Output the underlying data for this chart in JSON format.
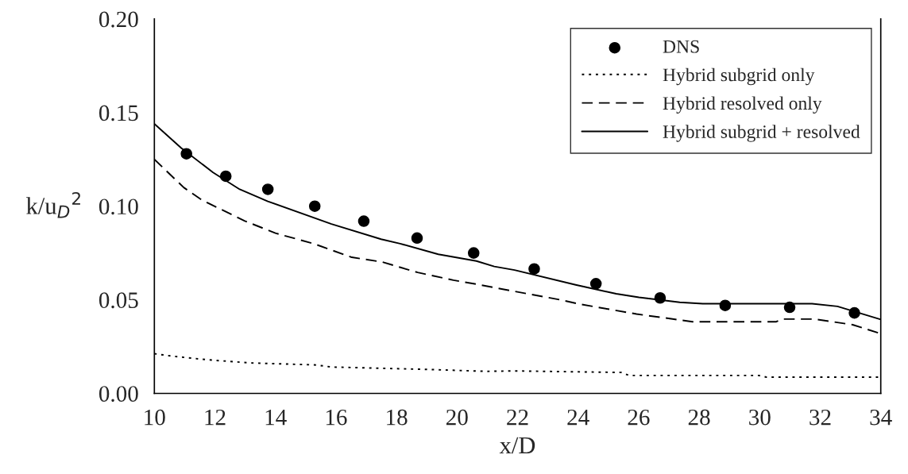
{
  "chart_data": {
    "type": "line",
    "xlabel": "x/D",
    "ylabel": "k/u$_{D}$$^{2}$",
    "xlim": [
      10,
      34
    ],
    "xticks": [
      10,
      12,
      14,
      16,
      18,
      20,
      22,
      24,
      26,
      28,
      30,
      32,
      34
    ],
    "ylim": [
      0,
      0.2
    ],
    "yticks": [
      {
        "value": 0,
        "label": "0.00"
      },
      {
        "value": 0.05,
        "label": "0.05"
      },
      {
        "value": 0.1,
        "label": "0.10"
      },
      {
        "value": 0.15,
        "label": "0.15"
      },
      {
        "value": 0.2,
        "label": "0.20"
      }
    ],
    "grid": false,
    "legend": "top right",
    "series": [
      {
        "name": "DNS",
        "type": "scatter",
        "marker": "circle",
        "color": "#000000",
        "x": [
          11.06,
          12.36,
          13.75,
          15.3,
          16.92,
          18.68,
          20.55,
          22.55,
          24.59,
          26.71,
          28.86,
          30.99,
          33.13
        ],
        "values": [
          0.128,
          0.116,
          0.109,
          0.1,
          0.092,
          0.083,
          0.075,
          0.0665,
          0.0586,
          0.051,
          0.047,
          0.046,
          0.043
        ]
      },
      {
        "name": "Hybrid subgrid only",
        "line_style": "dotted",
        "color": "#000000",
        "x": [
          10,
          10.55,
          11.73,
          13.16,
          15.34,
          15.85,
          19.04,
          20.97,
          21.9,
          25.43,
          25.68,
          29.97,
          30.22,
          34
        ],
        "values": [
          0.0212,
          0.02,
          0.018,
          0.0163,
          0.0152,
          0.0141,
          0.0128,
          0.0118,
          0.012,
          0.0112,
          0.0096,
          0.0096,
          0.0087,
          0.0087
        ]
      },
      {
        "name": "Hybrid resolved only",
        "line_style": "dashed",
        "color": "#000000",
        "x": [
          10,
          10.97,
          11.56,
          12.99,
          14.0,
          15.26,
          16.52,
          17.53,
          18.7,
          19.88,
          20.72,
          21.9,
          23.41,
          24.08,
          25.93,
          27.78,
          30.55,
          30.72,
          31.81,
          33.07,
          34
        ],
        "values": [
          0.125,
          0.11,
          0.1034,
          0.0921,
          0.0856,
          0.08,
          0.0727,
          0.0702,
          0.0646,
          0.0605,
          0.0581,
          0.0545,
          0.05,
          0.0476,
          0.0424,
          0.0383,
          0.0383,
          0.0397,
          0.0397,
          0.0367,
          0.0319
        ]
      },
      {
        "name": "Hybrid subgrid + resolved",
        "line_style": "solid",
        "color": "#000000",
        "x": [
          10,
          10.89,
          11.94,
          12.82,
          13.75,
          15.85,
          17.49,
          18.12,
          19.38,
          20.64,
          21.23,
          21.9,
          23.92,
          25.26,
          26.01,
          27.36,
          28.12,
          31.73,
          32.57,
          34
        ],
        "values": [
          0.144,
          0.131,
          0.118,
          0.109,
          0.1026,
          0.0905,
          0.0824,
          0.08,
          0.0743,
          0.0707,
          0.0678,
          0.0659,
          0.058,
          0.0532,
          0.0513,
          0.0487,
          0.0479,
          0.0479,
          0.0465,
          0.0395
        ]
      }
    ]
  }
}
